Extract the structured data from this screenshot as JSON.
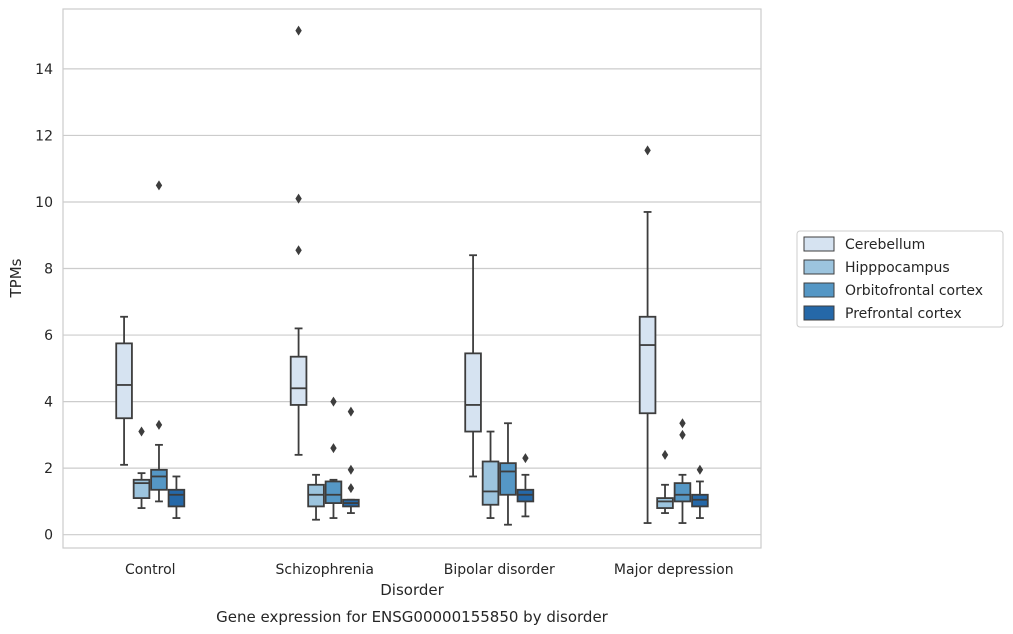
{
  "chart_data": {
    "type": "boxplot",
    "title": "",
    "caption": "Gene expression for ENSG00000155850 by disorder",
    "xlabel": "Disorder",
    "ylabel": "TPMs",
    "ylim": [
      -0.4,
      15.8
    ],
    "yticks": [
      0,
      2,
      4,
      6,
      8,
      10,
      12,
      14
    ],
    "grid": "horizontal",
    "legend_position": "right",
    "categories": [
      "Control",
      "Schizophrenia",
      "Bipolar disorder",
      "Major depression"
    ],
    "series": [
      {
        "name": "Cerebellum",
        "color": "#d6e3f1",
        "boxes": [
          {
            "whisker_low": 2.1,
            "q1": 3.5,
            "median": 4.5,
            "q3": 5.75,
            "whisker_high": 6.55,
            "outliers": []
          },
          {
            "whisker_low": 2.4,
            "q1": 3.9,
            "median": 4.4,
            "q3": 5.35,
            "whisker_high": 6.2,
            "outliers": [
              8.55,
              10.1,
              15.15
            ]
          },
          {
            "whisker_low": 1.75,
            "q1": 3.1,
            "median": 3.9,
            "q3": 5.45,
            "whisker_high": 8.4,
            "outliers": []
          },
          {
            "whisker_low": 0.35,
            "q1": 3.65,
            "median": 5.7,
            "q3": 6.55,
            "whisker_high": 9.7,
            "outliers": [
              11.55
            ]
          }
        ]
      },
      {
        "name": "Hipppocampus",
        "color": "#9cc4de",
        "boxes": [
          {
            "whisker_low": 0.8,
            "q1": 1.1,
            "median": 1.55,
            "q3": 1.65,
            "whisker_high": 1.85,
            "outliers": [
              3.1
            ]
          },
          {
            "whisker_low": 0.45,
            "q1": 0.85,
            "median": 1.2,
            "q3": 1.5,
            "whisker_high": 1.8,
            "outliers": []
          },
          {
            "whisker_low": 0.5,
            "q1": 0.9,
            "median": 1.3,
            "q3": 2.2,
            "whisker_high": 3.1,
            "outliers": []
          },
          {
            "whisker_low": 0.65,
            "q1": 0.8,
            "median": 1.0,
            "q3": 1.1,
            "whisker_high": 1.5,
            "outliers": [
              2.4
            ]
          }
        ]
      },
      {
        "name": "Orbitofrontal cortex",
        "color": "#5597c5",
        "boxes": [
          {
            "whisker_low": 1.0,
            "q1": 1.35,
            "median": 1.75,
            "q3": 1.95,
            "whisker_high": 2.7,
            "outliers": [
              3.3,
              10.5
            ]
          },
          {
            "whisker_low": 0.5,
            "q1": 0.95,
            "median": 1.2,
            "q3": 1.6,
            "whisker_high": 1.65,
            "outliers": [
              2.6,
              4.0
            ]
          },
          {
            "whisker_low": 0.3,
            "q1": 1.2,
            "median": 1.9,
            "q3": 2.15,
            "whisker_high": 3.35,
            "outliers": []
          },
          {
            "whisker_low": 0.35,
            "q1": 1.0,
            "median": 1.2,
            "q3": 1.55,
            "whisker_high": 1.8,
            "outliers": [
              3.0,
              3.35
            ]
          }
        ]
      },
      {
        "name": "Prefrontal cortex",
        "color": "#2568a8",
        "boxes": [
          {
            "whisker_low": 0.5,
            "q1": 0.85,
            "median": 1.2,
            "q3": 1.35,
            "whisker_high": 1.75,
            "outliers": []
          },
          {
            "whisker_low": 0.65,
            "q1": 0.85,
            "median": 0.95,
            "q3": 1.05,
            "whisker_high": 1.05,
            "outliers": [
              1.4,
              1.95,
              3.7
            ]
          },
          {
            "whisker_low": 0.55,
            "q1": 1.0,
            "median": 1.2,
            "q3": 1.35,
            "whisker_high": 1.8,
            "outliers": [
              2.3
            ]
          },
          {
            "whisker_low": 0.5,
            "q1": 0.85,
            "median": 1.05,
            "q3": 1.2,
            "whisker_high": 1.6,
            "outliers": [
              1.95
            ]
          }
        ]
      }
    ]
  }
}
